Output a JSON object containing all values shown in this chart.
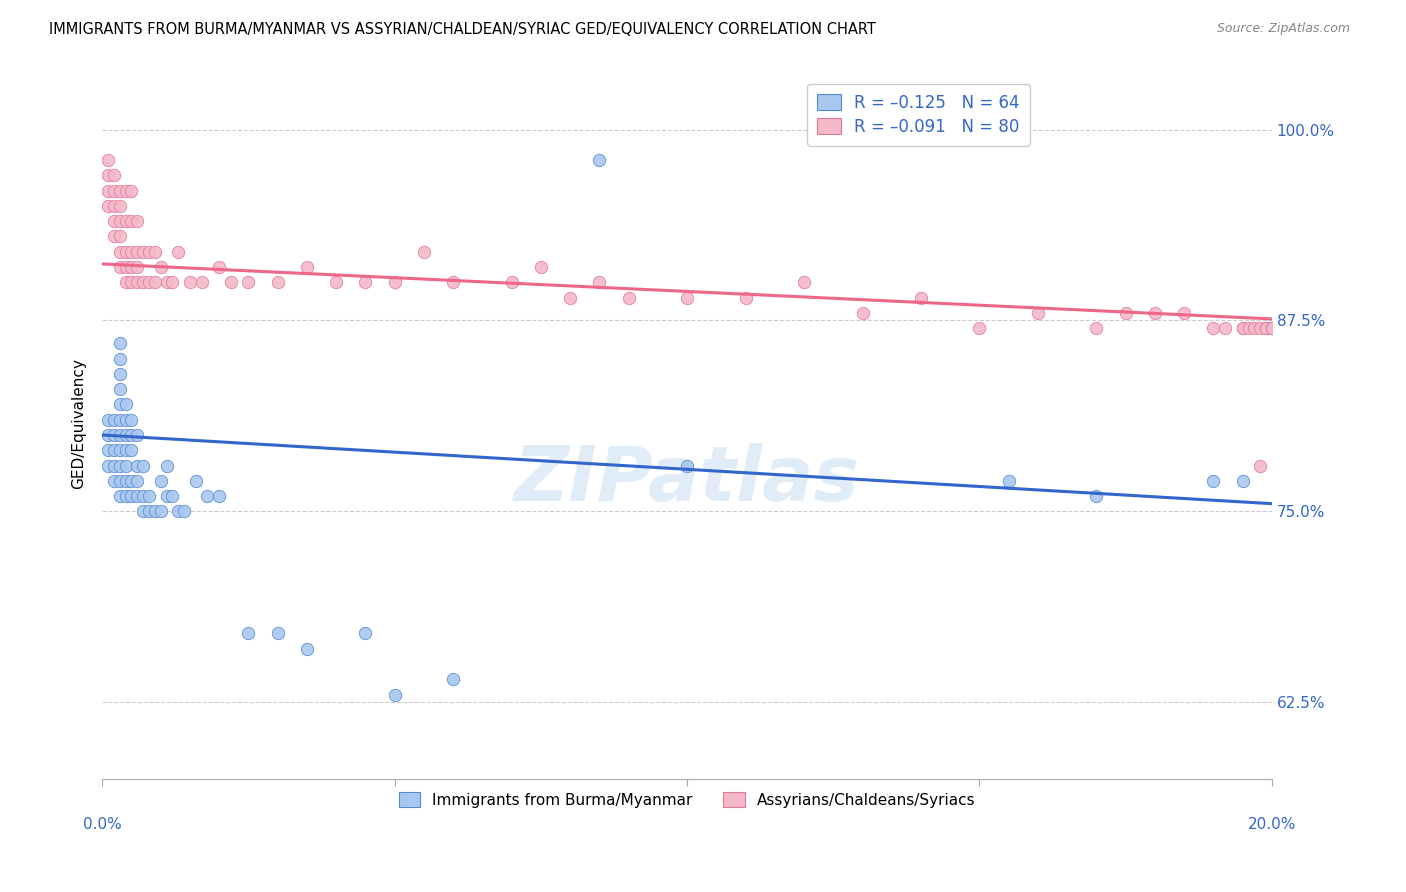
{
  "title": "IMMIGRANTS FROM BURMA/MYANMAR VS ASSYRIAN/CHALDEAN/SYRIAC GED/EQUIVALENCY CORRELATION CHART",
  "source": "Source: ZipAtlas.com",
  "ylabel": "GED/Equivalency",
  "ytick_labels": [
    "62.5%",
    "75.0%",
    "87.5%",
    "100.0%"
  ],
  "ytick_values": [
    0.625,
    0.75,
    0.875,
    1.0
  ],
  "xlim": [
    0.0,
    0.2
  ],
  "ylim": [
    0.575,
    1.04
  ],
  "blue_color": "#A8C8F0",
  "pink_color": "#F5B8C8",
  "blue_edge_color": "#5588CC",
  "pink_edge_color": "#DD7799",
  "blue_line_color": "#3366CC",
  "pink_line_color": "#EE6688",
  "axis_label_color": "#3366CC",
  "series_blue_label": "Immigrants from Burma/Myanmar",
  "series_pink_label": "Assyrians/Chaldeans/Syriacs",
  "watermark": "ZIPatlas",
  "blue_trend_x0": 0.0,
  "blue_trend_y0": 0.8,
  "blue_trend_x1": 0.2,
  "blue_trend_y1": 0.755,
  "pink_trend_x0": 0.0,
  "pink_trend_y0": 0.912,
  "pink_trend_x1": 0.2,
  "pink_trend_y1": 0.876,
  "blue_scatter_x": [
    0.001,
    0.001,
    0.001,
    0.001,
    0.002,
    0.002,
    0.002,
    0.002,
    0.002,
    0.003,
    0.003,
    0.003,
    0.003,
    0.003,
    0.003,
    0.003,
    0.003,
    0.003,
    0.003,
    0.003,
    0.004,
    0.004,
    0.004,
    0.004,
    0.004,
    0.004,
    0.004,
    0.005,
    0.005,
    0.005,
    0.005,
    0.005,
    0.006,
    0.006,
    0.006,
    0.006,
    0.007,
    0.007,
    0.007,
    0.008,
    0.008,
    0.009,
    0.01,
    0.01,
    0.011,
    0.011,
    0.012,
    0.013,
    0.014,
    0.016,
    0.018,
    0.02,
    0.025,
    0.03,
    0.035,
    0.045,
    0.05,
    0.06,
    0.085,
    0.1,
    0.155,
    0.17,
    0.19,
    0.195
  ],
  "blue_scatter_y": [
    0.78,
    0.79,
    0.8,
    0.81,
    0.77,
    0.78,
    0.79,
    0.8,
    0.81,
    0.76,
    0.77,
    0.78,
    0.79,
    0.8,
    0.81,
    0.82,
    0.83,
    0.84,
    0.85,
    0.86,
    0.76,
    0.77,
    0.78,
    0.79,
    0.8,
    0.81,
    0.82,
    0.76,
    0.77,
    0.79,
    0.8,
    0.81,
    0.76,
    0.77,
    0.78,
    0.8,
    0.75,
    0.76,
    0.78,
    0.75,
    0.76,
    0.75,
    0.75,
    0.77,
    0.76,
    0.78,
    0.76,
    0.75,
    0.75,
    0.77,
    0.76,
    0.76,
    0.67,
    0.67,
    0.66,
    0.67,
    0.63,
    0.64,
    0.98,
    0.78,
    0.77,
    0.76,
    0.77,
    0.77
  ],
  "pink_scatter_x": [
    0.001,
    0.001,
    0.001,
    0.001,
    0.002,
    0.002,
    0.002,
    0.002,
    0.002,
    0.003,
    0.003,
    0.003,
    0.003,
    0.003,
    0.003,
    0.004,
    0.004,
    0.004,
    0.004,
    0.004,
    0.005,
    0.005,
    0.005,
    0.005,
    0.005,
    0.006,
    0.006,
    0.006,
    0.006,
    0.007,
    0.007,
    0.008,
    0.008,
    0.009,
    0.009,
    0.01,
    0.011,
    0.012,
    0.013,
    0.015,
    0.017,
    0.02,
    0.022,
    0.025,
    0.03,
    0.035,
    0.04,
    0.045,
    0.05,
    0.055,
    0.06,
    0.07,
    0.075,
    0.08,
    0.085,
    0.09,
    0.1,
    0.11,
    0.12,
    0.13,
    0.14,
    0.15,
    0.16,
    0.17,
    0.175,
    0.18,
    0.185,
    0.19,
    0.192,
    0.195,
    0.195,
    0.196,
    0.197,
    0.198,
    0.198,
    0.199,
    0.199,
    0.2,
    0.2,
    0.2
  ],
  "pink_scatter_y": [
    0.95,
    0.96,
    0.97,
    0.98,
    0.93,
    0.94,
    0.95,
    0.96,
    0.97,
    0.91,
    0.92,
    0.93,
    0.94,
    0.95,
    0.96,
    0.9,
    0.91,
    0.92,
    0.94,
    0.96,
    0.9,
    0.91,
    0.92,
    0.94,
    0.96,
    0.9,
    0.91,
    0.92,
    0.94,
    0.9,
    0.92,
    0.9,
    0.92,
    0.9,
    0.92,
    0.91,
    0.9,
    0.9,
    0.92,
    0.9,
    0.9,
    0.91,
    0.9,
    0.9,
    0.9,
    0.91,
    0.9,
    0.9,
    0.9,
    0.92,
    0.9,
    0.9,
    0.91,
    0.89,
    0.9,
    0.89,
    0.89,
    0.89,
    0.9,
    0.88,
    0.89,
    0.87,
    0.88,
    0.87,
    0.88,
    0.88,
    0.88,
    0.87,
    0.87,
    0.87,
    0.87,
    0.87,
    0.87,
    0.87,
    0.78,
    0.87,
    0.87,
    0.87,
    0.87,
    0.87
  ]
}
